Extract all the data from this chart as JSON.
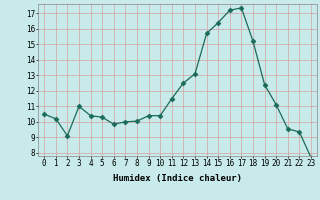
{
  "x": [
    0,
    1,
    2,
    3,
    4,
    5,
    6,
    7,
    8,
    9,
    10,
    11,
    12,
    13,
    14,
    15,
    16,
    17,
    18,
    19,
    20,
    21,
    22,
    23
  ],
  "y": [
    10.5,
    10.2,
    9.1,
    11.0,
    10.4,
    10.3,
    9.85,
    10.0,
    10.05,
    10.4,
    10.4,
    11.5,
    12.5,
    13.1,
    15.7,
    16.4,
    17.2,
    17.35,
    15.2,
    12.4,
    11.1,
    9.55,
    9.35,
    7.7
  ],
  "xlabel": "Humidex (Indice chaleur)",
  "xlim": [
    -0.5,
    23.5
  ],
  "ylim": [
    7.8,
    17.6
  ],
  "yticks": [
    8,
    9,
    10,
    11,
    12,
    13,
    14,
    15,
    16,
    17
  ],
  "xticks": [
    0,
    1,
    2,
    3,
    4,
    5,
    6,
    7,
    8,
    9,
    10,
    11,
    12,
    13,
    14,
    15,
    16,
    17,
    18,
    19,
    20,
    21,
    22,
    23
  ],
  "line_color": "#1a6b5a",
  "marker": "D",
  "marker_size": 2.5,
  "bg_color": "#c8eaea",
  "grid_color": "#d4a0a0",
  "label_fontsize": 6.5,
  "tick_fontsize": 5.5
}
